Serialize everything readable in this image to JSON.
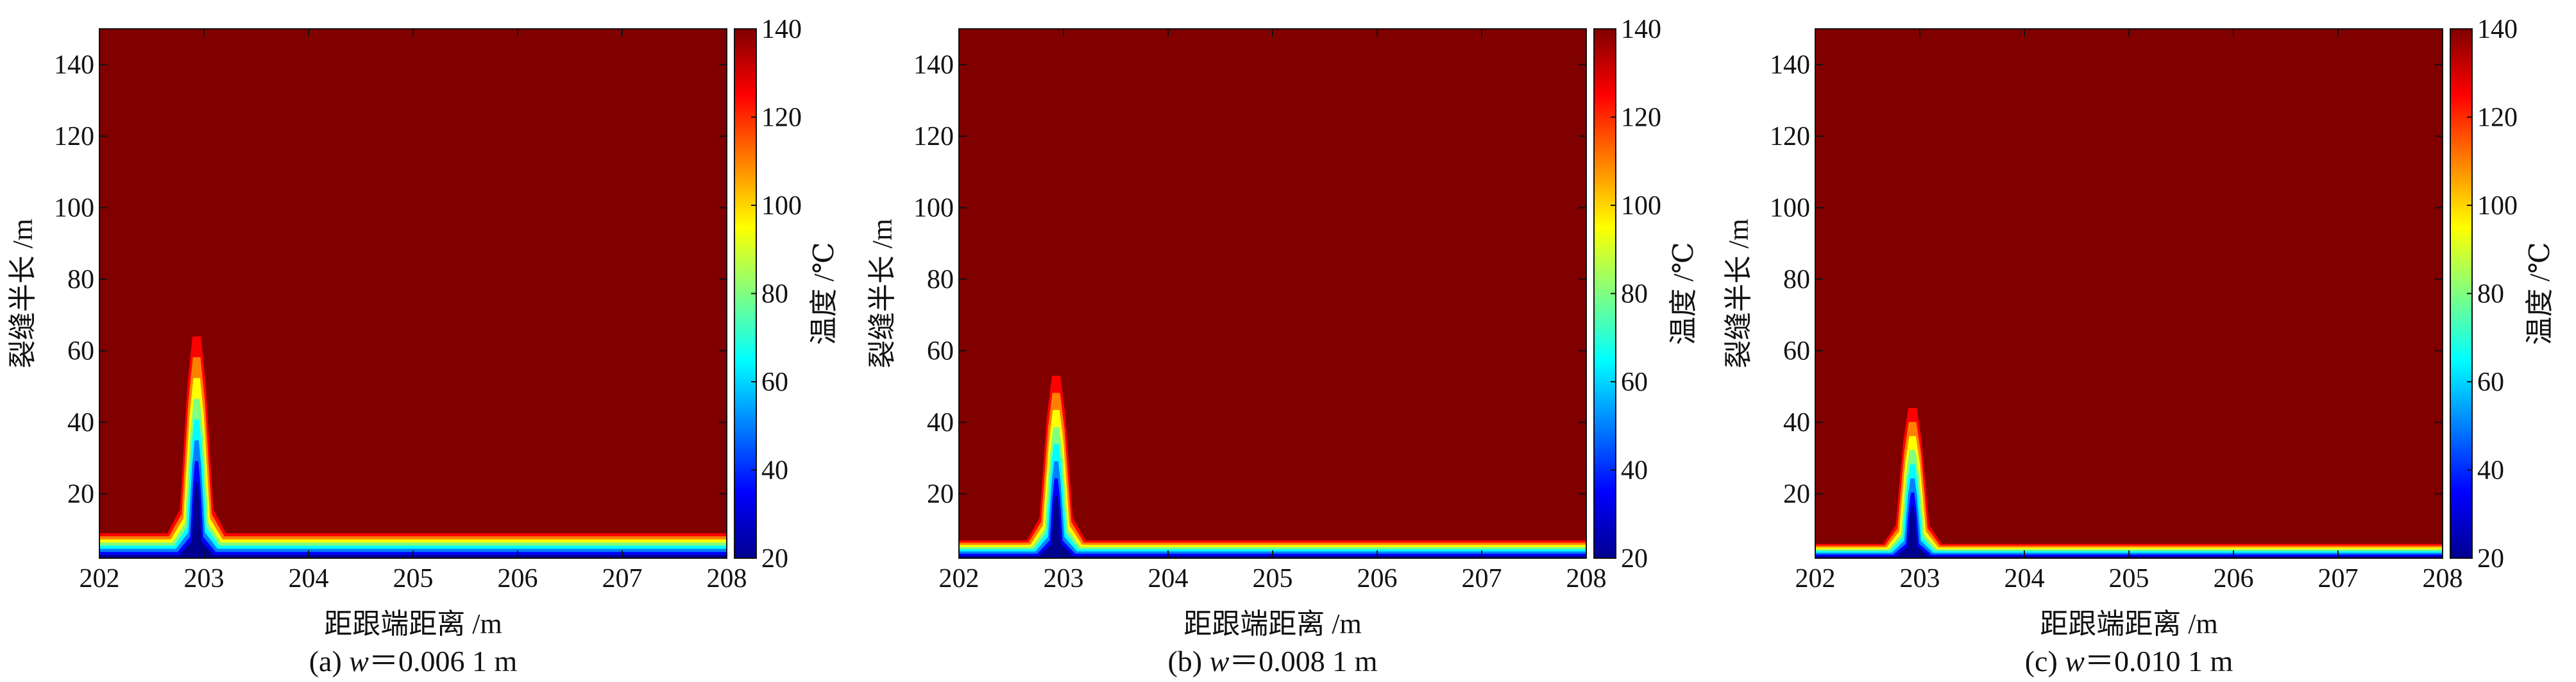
{
  "figure": {
    "colorbar_ticks": [
      20,
      40,
      60,
      80,
      100,
      120,
      140
    ],
    "colorbar_label": "温度 /℃",
    "colormap": [
      "#00008f",
      "#0000ff",
      "#0080ff",
      "#00ffff",
      "#80ff80",
      "#ffff00",
      "#ff8000",
      "#ff0000",
      "#800000"
    ]
  },
  "chart_data": [
    {
      "type": "heatmap",
      "caption": "(a) w＝0.006 1 m",
      "caption_prefix": "(a) ",
      "caption_var": "w",
      "caption_value": "＝0.006 1 m",
      "xlabel": "距跟端距离 /m",
      "ylabel": "裂缝半长 /m",
      "xlim": [
        202,
        208
      ],
      "ylim": [
        2,
        150
      ],
      "xticks": [
        202,
        203,
        204,
        205,
        206,
        207,
        208
      ],
      "yticks": [
        20,
        40,
        60,
        80,
        100,
        120,
        140
      ],
      "zlim": [
        20,
        140
      ],
      "colorbar_label": "温度 /℃",
      "background_temperature": 140,
      "fracture_x": 202.93,
      "cooled_region_height": 64,
      "cooled_band_height": 9
    },
    {
      "type": "heatmap",
      "caption": "(b) w＝0.008 1 m",
      "caption_prefix": "(b) ",
      "caption_var": "w",
      "caption_value": "＝0.008 1 m",
      "xlabel": "距跟端距离 /m",
      "ylabel": "裂缝半长 /m",
      "xlim": [
        202,
        208
      ],
      "ylim": [
        2,
        150
      ],
      "xticks": [
        202,
        203,
        204,
        205,
        206,
        207,
        208
      ],
      "yticks": [
        20,
        40,
        60,
        80,
        100,
        120,
        140
      ],
      "zlim": [
        20,
        140
      ],
      "colorbar_label": "温度 /℃",
      "background_temperature": 140,
      "fracture_x": 202.93,
      "cooled_region_height": 53,
      "cooled_band_height": 7
    },
    {
      "type": "heatmap",
      "caption": "(c) w＝0.010 1 m",
      "caption_prefix": "(c) ",
      "caption_var": "w",
      "caption_value": "＝0.010 1 m",
      "xlabel": "距跟端距离 /m",
      "ylabel": "裂缝半长 /m",
      "xlim": [
        202,
        208
      ],
      "ylim": [
        2,
        150
      ],
      "xticks": [
        202,
        203,
        204,
        205,
        206,
        207,
        208
      ],
      "yticks": [
        20,
        40,
        60,
        80,
        100,
        120,
        140
      ],
      "zlim": [
        20,
        140
      ],
      "colorbar_label": "温度 /℃",
      "background_temperature": 140,
      "fracture_x": 202.93,
      "cooled_region_height": 44,
      "cooled_band_height": 6
    }
  ]
}
